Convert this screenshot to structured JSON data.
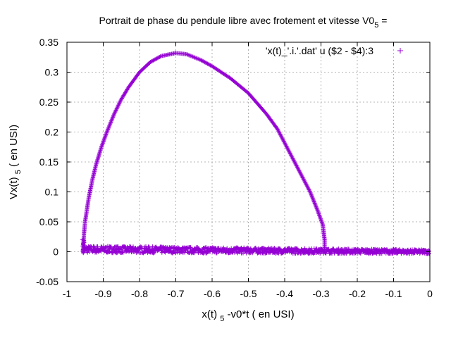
{
  "chart_data": {
    "type": "scatter",
    "title": {
      "main": "Portrait de phase du pendule libre avec frotement et vitesse V0",
      "subscript": "5",
      "suffix": " ="
    },
    "xlabel": {
      "pre": "x(t) ",
      "sub": "5",
      "post": " -v0*t ( en USI)"
    },
    "ylabel": {
      "pre": "Vx(t) ",
      "sub": "5",
      "post": " ( en USI)"
    },
    "xlim": [
      -1,
      0
    ],
    "ylim": [
      -0.05,
      0.35
    ],
    "xticks": [
      -1,
      -0.9,
      -0.8,
      -0.7,
      -0.6,
      -0.5,
      -0.4,
      -0.3,
      -0.2,
      -0.1,
      0
    ],
    "xtick_labels": [
      "-1",
      "-0.9",
      "-0.8",
      "-0.7",
      "-0.6",
      "-0.5",
      "-0.4",
      "-0.3",
      "-0.2",
      "-0.1",
      "0"
    ],
    "yticks": [
      -0.05,
      0,
      0.05,
      0.1,
      0.15,
      0.2,
      0.25,
      0.3,
      0.35
    ],
    "ytick_labels": [
      "-0.05",
      "0",
      "0.05",
      "0.1",
      "0.15",
      "0.2",
      "0.25",
      "0.3",
      "0.35"
    ],
    "grid": true,
    "legend_position": "top-right",
    "marker": "+",
    "series": [
      {
        "name": "'x(t)_'.i.'.dat' u ($2 - $4):3",
        "color": "#9400d3",
        "arc": [
          [
            -0.955,
            0.01
          ],
          [
            -0.953,
            0.03
          ],
          [
            -0.95,
            0.05
          ],
          [
            -0.945,
            0.07
          ],
          [
            -0.94,
            0.09
          ],
          [
            -0.93,
            0.12
          ],
          [
            -0.92,
            0.145
          ],
          [
            -0.905,
            0.175
          ],
          [
            -0.89,
            0.2
          ],
          [
            -0.87,
            0.23
          ],
          [
            -0.85,
            0.255
          ],
          [
            -0.83,
            0.275
          ],
          [
            -0.8,
            0.3
          ],
          [
            -0.77,
            0.317
          ],
          [
            -0.74,
            0.327
          ],
          [
            -0.7,
            0.332
          ],
          [
            -0.67,
            0.33
          ],
          [
            -0.63,
            0.32
          ],
          [
            -0.6,
            0.31
          ],
          [
            -0.55,
            0.29
          ],
          [
            -0.5,
            0.265
          ],
          [
            -0.45,
            0.23
          ],
          [
            -0.42,
            0.205
          ],
          [
            -0.39,
            0.17
          ],
          [
            -0.36,
            0.135
          ],
          [
            -0.33,
            0.1
          ],
          [
            -0.31,
            0.07
          ],
          [
            -0.295,
            0.045
          ],
          [
            -0.29,
            0.02
          ],
          [
            -0.29,
            0.0
          ]
        ],
        "band": {
          "x_from": -0.955,
          "x_to": 0.0,
          "y_center_start": 0.004,
          "y_center_end": 0.0,
          "y_spread": 0.006
        }
      }
    ]
  }
}
